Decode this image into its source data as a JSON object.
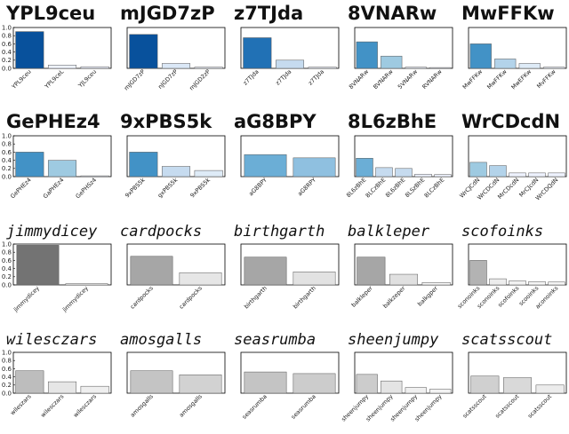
{
  "chart_data": [
    {
      "type": "bar",
      "title": "YPL9ceu",
      "categories": [
        "YPL9ceu",
        "YPL9ceL",
        "YJL9ceu"
      ],
      "values": [
        0.9,
        0.08,
        0.04
      ],
      "ylim": [
        0,
        1.0
      ],
      "yticks": [
        "0.0",
        "0.2",
        "0.4",
        "0.6",
        "0.8",
        "1.0"
      ],
      "colors": [
        "#08519c",
        "#eff3ff",
        "#eff3ff"
      ],
      "title_style": "bold"
    },
    {
      "type": "bar",
      "title": "mJGD7zP",
      "categories": [
        "mJGD7zP",
        "nJGD7zP",
        "mJGD2zP"
      ],
      "values": [
        0.83,
        0.12,
        0.03
      ],
      "ylim": [
        0,
        1.0
      ],
      "colors": [
        "#08519c",
        "#dbe8f7",
        "#eff3ff"
      ],
      "title_style": "bold"
    },
    {
      "type": "bar",
      "title": "z7TJda",
      "categories": [
        "z7TJda",
        "z7TJda",
        "z7TJda"
      ],
      "values": [
        0.75,
        0.2,
        0.03
      ],
      "ylim": [
        0,
        1.0
      ],
      "colors": [
        "#2171b5",
        "#c6dbef",
        "#eff3ff"
      ],
      "title_style": "bold"
    },
    {
      "type": "bar",
      "title": "8VNARw",
      "categories": [
        "8VNARw",
        "BVNARw",
        "5VNARw",
        "RVNARw"
      ],
      "values": [
        0.65,
        0.3,
        0.03,
        0.02
      ],
      "ylim": [
        0,
        1.0
      ],
      "colors": [
        "#4292c6",
        "#9ecae1",
        "#eff3ff",
        "#eff3ff"
      ],
      "title_style": "bold"
    },
    {
      "type": "bar",
      "title": "MwFFKw",
      "categories": [
        "MwFFKw",
        "MwFFKw",
        "MwEFKw",
        "MvFFKw"
      ],
      "values": [
        0.6,
        0.23,
        0.12,
        0.03
      ],
      "ylim": [
        0,
        1.0
      ],
      "colors": [
        "#4292c6",
        "#b3d3ea",
        "#deebf7",
        "#eff3ff"
      ],
      "title_style": "bold"
    },
    {
      "type": "bar",
      "title": "GePHEz4",
      "categories": [
        "GePHEz4",
        "GaPHEz4",
        "GePHSz4"
      ],
      "values": [
        0.6,
        0.4,
        0.02
      ],
      "ylim": [
        0,
        1.0
      ],
      "yticks": [
        "0.0",
        "0.2",
        "0.4",
        "0.6",
        "0.8",
        "1.0"
      ],
      "colors": [
        "#4292c6",
        "#9ecae1",
        "#eff3ff"
      ],
      "title_style": "bold"
    },
    {
      "type": "bar",
      "title": "9xPBS5k",
      "categories": [
        "9xPBS5k",
        "gxPBS5k",
        "9xPBS5k"
      ],
      "values": [
        0.6,
        0.25,
        0.15
      ],
      "ylim": [
        0,
        1.0
      ],
      "colors": [
        "#4292c6",
        "#c6dbef",
        "#deebf7"
      ],
      "title_style": "bold"
    },
    {
      "type": "bar",
      "title": "aG8BPY",
      "categories": [
        "aG8BPY",
        "aG8RPY"
      ],
      "values": [
        0.54,
        0.46
      ],
      "ylim": [
        0,
        1.0
      ],
      "colors": [
        "#6baed6",
        "#8fc0e0"
      ],
      "title_style": "bold"
    },
    {
      "type": "bar",
      "title": "8L6zBhE",
      "categories": [
        "8L6zBhE",
        "8LCzBhE",
        "8L6zBhE",
        "8LSzBhE",
        "8LCzBhE"
      ],
      "values": [
        0.45,
        0.22,
        0.2,
        0.06,
        0.05
      ],
      "ylim": [
        0,
        1.0
      ],
      "colors": [
        "#6baed6",
        "#c6dbef",
        "#c6dbef",
        "#eff3ff",
        "#eff3ff"
      ],
      "title_style": "bold"
    },
    {
      "type": "bar",
      "title": "WrCDcdN",
      "categories": [
        "WrCJCdN",
        "WrCDCdN",
        "MrCDcdN",
        "MrCJcdN",
        "WrCDQdN"
      ],
      "values": [
        0.35,
        0.27,
        0.09,
        0.09,
        0.09
      ],
      "ylim": [
        0,
        1.0
      ],
      "colors": [
        "#9ecae1",
        "#b3d3ea",
        "#eff3ff",
        "#eff3ff",
        "#eff3ff"
      ],
      "title_style": "bold"
    },
    {
      "type": "bar",
      "title": "jimmydicey",
      "categories": [
        "jimmydicey",
        "jimmydicey"
      ],
      "values": [
        0.97,
        0.03
      ],
      "ylim": [
        0,
        1.0
      ],
      "yticks": [
        "0.0",
        "0.2",
        "0.4",
        "0.6",
        "0.8",
        "1.0"
      ],
      "colors": [
        "#737373",
        "#f5f5f5"
      ],
      "title_style": "typed"
    },
    {
      "type": "bar",
      "title": "cardpocks",
      "categories": [
        "cardpocks",
        "cardpocks"
      ],
      "values": [
        0.7,
        0.3
      ],
      "ylim": [
        0,
        1.0
      ],
      "colors": [
        "#a6a6a6",
        "#e6e6e6"
      ],
      "title_style": "typed"
    },
    {
      "type": "bar",
      "title": "birthgarth",
      "categories": [
        "birthgarth",
        "birthgarth"
      ],
      "values": [
        0.68,
        0.32
      ],
      "ylim": [
        0,
        1.0
      ],
      "colors": [
        "#a6a6a6",
        "#e2e2e2"
      ],
      "title_style": "typed"
    },
    {
      "type": "bar",
      "title": "balkleper",
      "categories": [
        "balkleper",
        "balkzeper",
        "balkgper"
      ],
      "values": [
        0.68,
        0.26,
        0.06
      ],
      "ylim": [
        0,
        1.0
      ],
      "colors": [
        "#a6a6a6",
        "#e0e0e0",
        "#f5f5f5"
      ],
      "title_style": "typed"
    },
    {
      "type": "bar",
      "title": "scofoinks",
      "categories": [
        "sconoinks",
        "sconoinks",
        "scofoinks",
        "scooinks",
        "aconoinks"
      ],
      "values": [
        0.6,
        0.15,
        0.1,
        0.08,
        0.07
      ],
      "ylim": [
        0,
        1.0
      ],
      "colors": [
        "#b3b3b3",
        "#ededed",
        "#f2f2f2",
        "#f5f5f5",
        "#f5f5f5"
      ],
      "title_style": "typed"
    },
    {
      "type": "bar",
      "title": "wilesczars",
      "categories": [
        "wileszars",
        "wilesczars",
        "wilesczars"
      ],
      "values": [
        0.55,
        0.28,
        0.17
      ],
      "ylim": [
        0,
        1.0
      ],
      "yticks": [
        "0.0",
        "0.2",
        "0.4",
        "0.6",
        "0.8",
        "1.0"
      ],
      "colors": [
        "#bdbdbd",
        "#e6e6e6",
        "#efefef"
      ],
      "title_style": "typed"
    },
    {
      "type": "bar",
      "title": "amosgalls",
      "categories": [
        "amosgalls",
        "amosgalls"
      ],
      "values": [
        0.55,
        0.45
      ],
      "ylim": [
        0,
        1.0
      ],
      "colors": [
        "#c4c4c4",
        "#d2d2d2"
      ],
      "title_style": "typed"
    },
    {
      "type": "bar",
      "title": "seasrumba",
      "categories": [
        "seasrumba",
        "seasrumba"
      ],
      "values": [
        0.52,
        0.48
      ],
      "ylim": [
        0,
        1.0
      ],
      "colors": [
        "#c4c4c4",
        "#cccccc"
      ],
      "title_style": "typed"
    },
    {
      "type": "bar",
      "title": "sheenjumpy",
      "categories": [
        "sheenjumpy",
        "sheenjumpy",
        "sheenjumpy",
        "sheenjumpy"
      ],
      "values": [
        0.46,
        0.3,
        0.14,
        0.1
      ],
      "ylim": [
        0,
        1.0
      ],
      "colors": [
        "#cccccc",
        "#e4e4e4",
        "#f0f0f0",
        "#f3f3f3"
      ],
      "title_style": "typed"
    },
    {
      "type": "bar",
      "title": "scatsscout",
      "categories": [
        "scatsscout",
        "scatsscout",
        "scatsscout"
      ],
      "values": [
        0.42,
        0.38,
        0.2
      ],
      "ylim": [
        0,
        1.0
      ],
      "colors": [
        "#d0d0d0",
        "#d9d9d9",
        "#ececec"
      ],
      "title_style": "typed"
    }
  ]
}
